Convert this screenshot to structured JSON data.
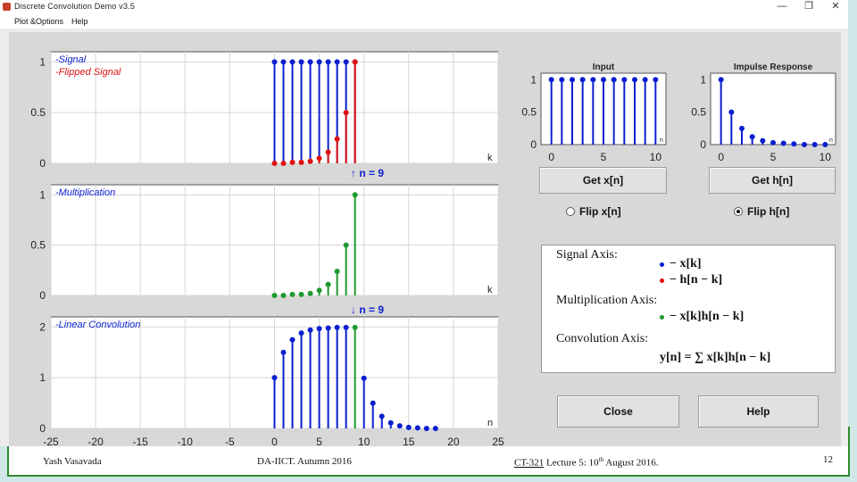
{
  "window": {
    "title": "Discrete Convolution Demo v3.5",
    "controls": {
      "minimize": "—",
      "maximize": "❐",
      "close": "✕"
    }
  },
  "menubar": {
    "items": [
      "Plot &Options",
      "Help"
    ]
  },
  "left_axes": {
    "signal": {
      "legend": [
        "Signal",
        "Flipped Signal"
      ],
      "axis_label": "k",
      "yticks": [
        "1",
        "0.5",
        "0"
      ]
    },
    "multiplication": {
      "legend": [
        "Multiplication"
      ],
      "axis_label": "k",
      "yticks": [
        "1",
        "0.5",
        "0"
      ]
    },
    "convolution": {
      "legend": [
        "Linear Convolution"
      ],
      "axis_label": "n",
      "yticks": [
        "2",
        "1",
        "0"
      ],
      "xticks": [
        "-25",
        "-20",
        "-15",
        "-10",
        "-5",
        "0",
        "5",
        "10",
        "15",
        "20",
        "25"
      ]
    },
    "n_up_label": "↑ n = 9",
    "n_down_label": "↓ n = 9"
  },
  "small_plots": {
    "input": {
      "title": "Input",
      "yticks": [
        "1",
        "0.5",
        "0"
      ],
      "xticks": [
        "0",
        "5",
        "10"
      ],
      "axis_label": "n"
    },
    "impulse": {
      "title": "Impulse Response",
      "yticks": [
        "1",
        "0.5",
        "0"
      ],
      "xticks": [
        "0",
        "5",
        "10"
      ],
      "axis_label": "n"
    }
  },
  "buttons": {
    "get_x": "Get x[n]",
    "get_h": "Get h[n]",
    "close": "Close",
    "help": "Help"
  },
  "radios": {
    "flip_x": "Flip x[n]",
    "flip_h": "Flip h[n]"
  },
  "legend_panel": {
    "signal_axis": "Signal Axis:",
    "signal_items": [
      "− x[k]",
      "− h[n − k]"
    ],
    "mult_axis": "Multiplication Axis:",
    "mult_item": "− x[k]h[n − k]",
    "conv_axis": "Convolution Axis:",
    "conv_item": "y[n] = ∑ x[k]h[n − k]"
  },
  "footer": {
    "author": "Yash Vasavada",
    "institute": "DA-IICT.  Autumn 2016",
    "course": "CT-321",
    "lecture": "  Lecture 5:  10",
    "lecture_sup": "th",
    "lecture_end": " August 2016.",
    "page": "12"
  },
  "colors": {
    "signal": "#0a1fd0",
    "flipped": "#e01010",
    "mult": "#1e9a2e"
  },
  "chart_data": [
    {
      "type": "scatter",
      "x": [
        0,
        1,
        2,
        3,
        4,
        5,
        6,
        7,
        8,
        9
      ],
      "series": [
        {
          "name": "Signal",
          "values": [
            1,
            1,
            1,
            1,
            1,
            1,
            1,
            1,
            1,
            1
          ]
        },
        {
          "name": "Flipped Signal",
          "values": [
            0.0,
            0.0,
            0.01,
            0.01,
            0.02,
            0.05,
            0.11,
            0.24,
            0.5,
            1.0
          ]
        }
      ],
      "ylim": [
        0,
        1.1
      ],
      "xlim": [
        -25,
        25
      ],
      "grid": true
    },
    {
      "type": "scatter",
      "x": [
        0,
        1,
        2,
        3,
        4,
        5,
        6,
        7,
        8,
        9
      ],
      "series": [
        {
          "name": "Multiplication",
          "values": [
            0.0,
            0.0,
            0.01,
            0.01,
            0.02,
            0.05,
            0.11,
            0.24,
            0.5,
            1.0
          ]
        }
      ],
      "ylim": [
        0,
        1.1
      ],
      "xlim": [
        -25,
        25
      ],
      "grid": true
    },
    {
      "type": "scatter",
      "x": [
        0,
        1,
        2,
        3,
        4,
        5,
        6,
        7,
        8,
        9,
        10,
        11,
        12,
        13,
        14,
        15,
        16,
        17,
        18
      ],
      "series": [
        {
          "name": "Linear Convolution",
          "values": [
            1,
            1.5,
            1.75,
            1.88,
            1.94,
            1.97,
            1.98,
            1.99,
            1.99,
            1.99,
            0.99,
            0.5,
            0.24,
            0.11,
            0.05,
            0.02,
            0.01,
            0.0,
            0.0
          ]
        }
      ],
      "highlight_index": 9,
      "ylim": [
        0,
        2.2
      ],
      "xlim": [
        -25,
        25
      ],
      "grid": true
    },
    {
      "type": "scatter",
      "title": "Input",
      "x": [
        0,
        1,
        2,
        3,
        4,
        5,
        6,
        7,
        8,
        9,
        10
      ],
      "series": [
        {
          "values": [
            1,
            1,
            1,
            1,
            1,
            1,
            1,
            1,
            1,
            1,
            1
          ]
        }
      ],
      "ylim": [
        0,
        1.1
      ],
      "xlim": [
        -1,
        11
      ]
    },
    {
      "type": "scatter",
      "title": "Impulse Response",
      "x": [
        0,
        1,
        2,
        3,
        4,
        5,
        6,
        7,
        8,
        9,
        10
      ],
      "series": [
        {
          "values": [
            1,
            0.5,
            0.25,
            0.12,
            0.06,
            0.03,
            0.02,
            0.01,
            0.0,
            0.0,
            0.0
          ]
        }
      ],
      "ylim": [
        0,
        1.1
      ],
      "xlim": [
        -1,
        11
      ]
    }
  ]
}
